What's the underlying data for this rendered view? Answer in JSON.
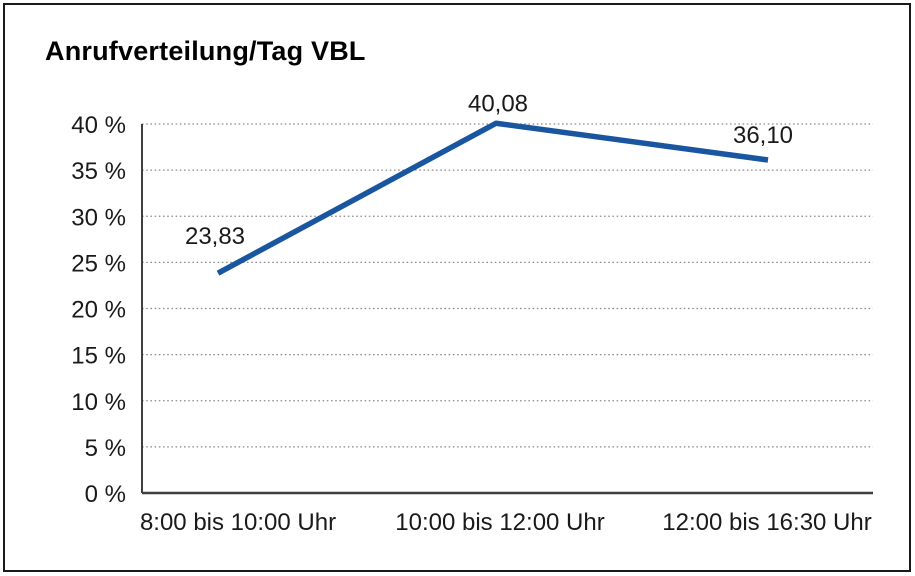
{
  "chart_data": {
    "type": "line",
    "title": "Anrufverteilung/Tag VBL",
    "categories": [
      "8:00 bis 10:00 Uhr",
      "10:00 bis 12:00 Uhr",
      "12:00 bis 16:30 Uhr"
    ],
    "values": [
      23.83,
      40.08,
      36.1
    ],
    "point_labels": [
      "23,83",
      "40,08",
      "36,10"
    ],
    "xlabel": "",
    "ylabel": "",
    "ylim": [
      0,
      40
    ],
    "yticks": [
      0,
      5,
      10,
      15,
      20,
      25,
      30,
      35,
      40
    ],
    "ytick_labels": [
      "0 %",
      "5 %",
      "10 %",
      "15 %",
      "20 %",
      "25 %",
      "30 %",
      "35 %",
      "40 %"
    ],
    "grid": "horizontal-dotted",
    "legend": "none",
    "colors": {
      "line": "#1A56A0",
      "gridline": "#8c8c8c",
      "axis": "#3f3f3f",
      "text": "#1a1a1a",
      "frame_border": "#1a1a1a"
    }
  }
}
